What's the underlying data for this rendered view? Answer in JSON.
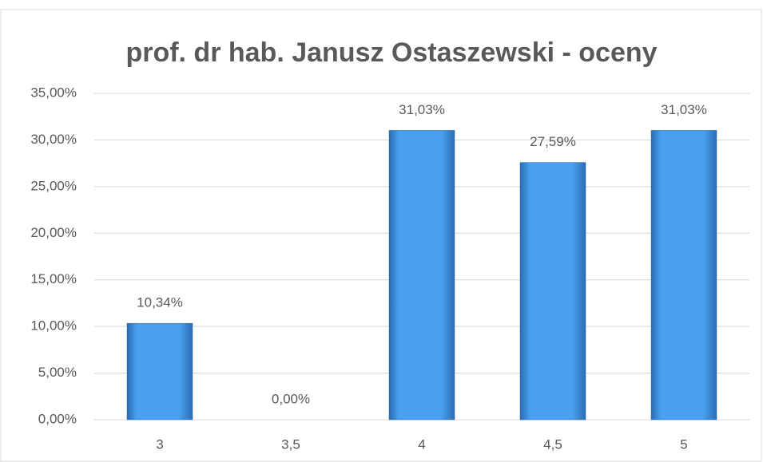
{
  "chart_data": {
    "type": "bar",
    "title": "prof. dr hab. Janusz Ostaszewski - oceny",
    "categories": [
      "3",
      "3,5",
      "4",
      "4,5",
      "5"
    ],
    "values": [
      10.34,
      0,
      31.03,
      27.59,
      31.03
    ],
    "value_labels": [
      "10,34%",
      "0,00%",
      "31,03%",
      "27,59%",
      "31,03%"
    ],
    "color": "#3f8fe0",
    "ylim": [
      0,
      35
    ],
    "yticks": [
      {
        "value": 0,
        "label": "0,00%"
      },
      {
        "value": 5,
        "label": "5,00%"
      },
      {
        "value": 10,
        "label": "10,00%"
      },
      {
        "value": 15,
        "label": "15,00%"
      },
      {
        "value": 20,
        "label": "20,00%"
      },
      {
        "value": 25,
        "label": "25,00%"
      },
      {
        "value": 30,
        "label": "30,00%"
      },
      {
        "value": 35,
        "label": "35,00%"
      }
    ],
    "grid": true
  }
}
